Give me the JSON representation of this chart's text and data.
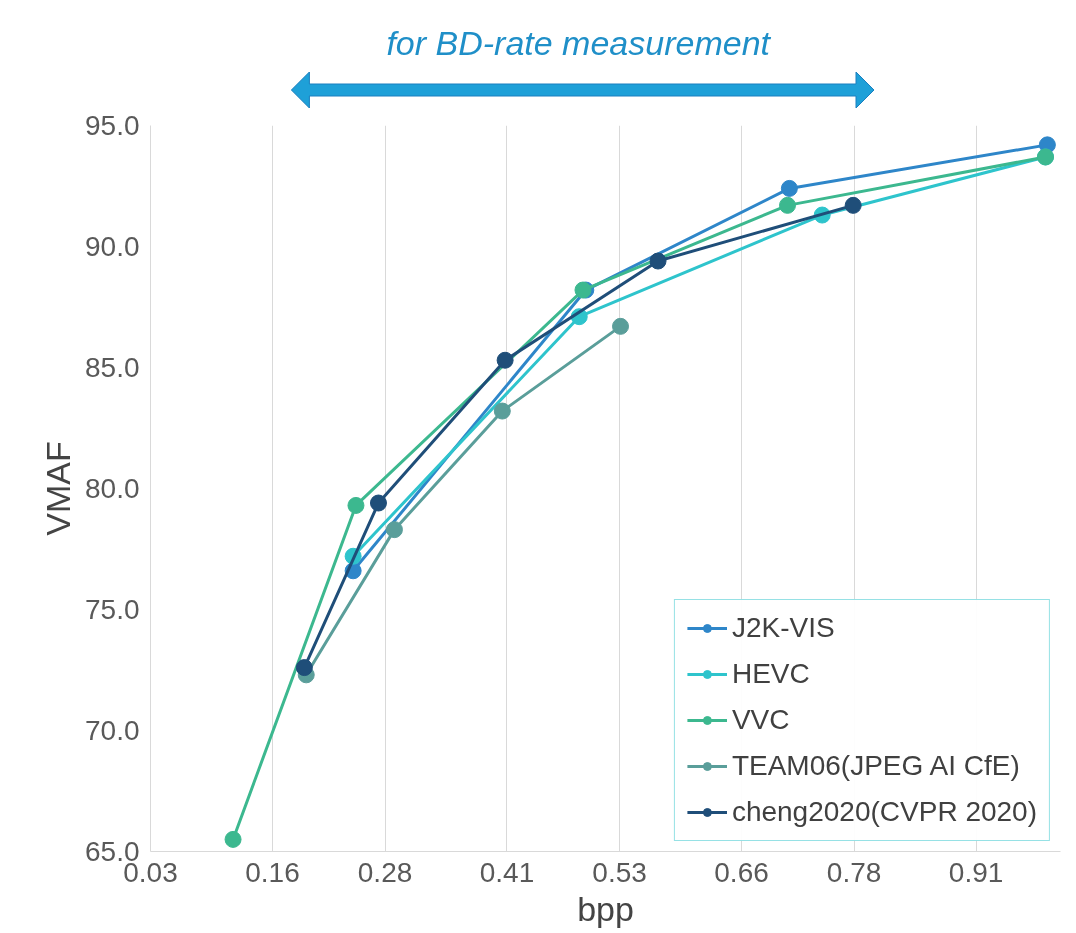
{
  "chart_data": {
    "type": "line",
    "xlabel": "bpp",
    "ylabel": "VMAF",
    "annotations": [
      "for BD-rate measurement"
    ],
    "xlim": [
      0.03,
      1.0
    ],
    "ylim": [
      65,
      95
    ],
    "xticks": [
      0.03,
      0.16,
      0.28,
      0.41,
      0.53,
      0.66,
      0.78,
      0.91
    ],
    "yticks": [
      {
        "value": 65,
        "label": "65.0"
      },
      {
        "value": 70,
        "label": "70.0"
      },
      {
        "value": 75,
        "label": "75.0"
      },
      {
        "value": 80,
        "label": "80.0"
      },
      {
        "value": 85,
        "label": "85.0"
      },
      {
        "value": 90,
        "label": "90.0"
      },
      {
        "value": 95,
        "label": "95.0"
      }
    ],
    "grid": "x",
    "legend": "bottom right",
    "marker": "circle",
    "line_style": "solid",
    "series": [
      {
        "name": "J2K-VIS",
        "color": "#2e86c9",
        "x": [
          0.246,
          0.494,
          0.711,
          0.986
        ],
        "values": [
          76.6,
          88.2,
          92.4,
          94.2
        ]
      },
      {
        "name": "HEVC",
        "color": "#2ec4cc",
        "x": [
          0.246,
          0.487,
          0.746,
          0.984
        ],
        "values": [
          77.2,
          87.1,
          91.3,
          93.7
        ]
      },
      {
        "name": "VVC",
        "color": "#3cb88f",
        "x": [
          0.118,
          0.249,
          0.491,
          0.709,
          0.984
        ],
        "values": [
          65.5,
          79.3,
          88.2,
          91.7,
          93.7
        ]
      },
      {
        "name": "TEAM06(JPEG AI CfE)",
        "color": "#5a9e9a",
        "x": [
          0.196,
          0.29,
          0.405,
          0.531
        ],
        "values": [
          72.3,
          78.3,
          83.2,
          86.7
        ]
      },
      {
        "name": "cheng2020(CVPR 2020)",
        "color": "#1f4e79",
        "x": [
          0.194,
          0.273,
          0.408,
          0.571,
          0.779
        ],
        "values": [
          72.6,
          79.4,
          85.3,
          89.4,
          91.7
        ]
      }
    ]
  }
}
